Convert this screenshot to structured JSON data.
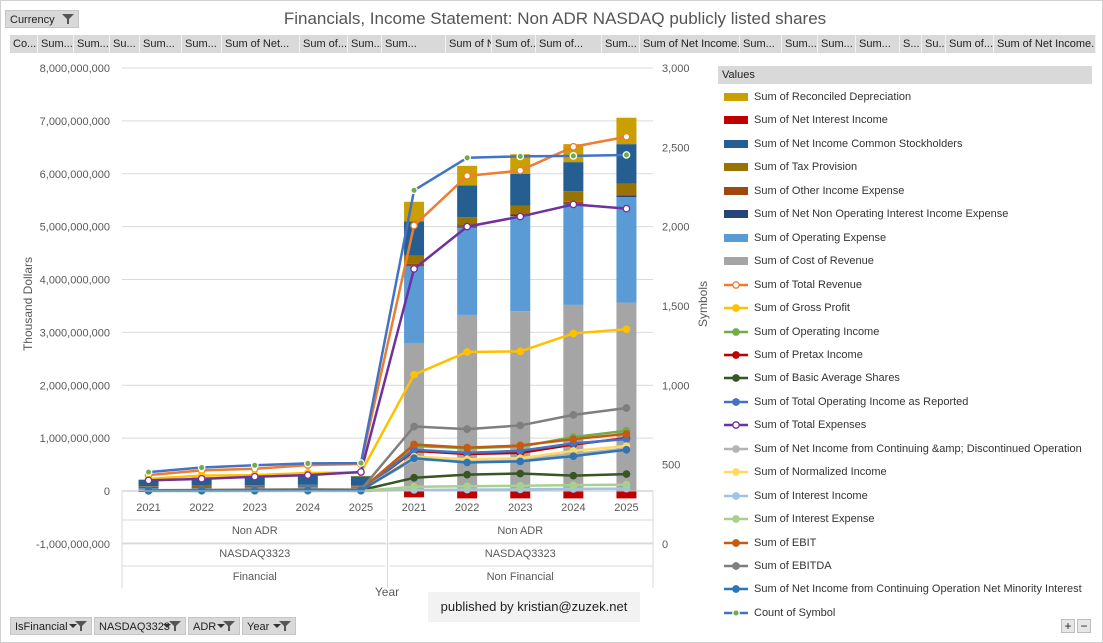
{
  "title": "Financials, Income Statement: Non ADR NASDAQ publicly listed shares",
  "filter_buttons": {
    "top": [
      {
        "label": "Currency"
      }
    ],
    "bottom": [
      {
        "label": "IsFinancial"
      },
      {
        "label": "NASDAQ3323"
      },
      {
        "label": "ADR"
      },
      {
        "label": "Year"
      }
    ]
  },
  "value_fields": [
    "Co...",
    "Sum...",
    "Sum...",
    "Su...",
    "Sum...",
    "Sum...",
    "Sum of Net...",
    "Sum of...",
    "Sum...",
    "Sum...",
    "Sum of Net...",
    "Sum of...",
    "Sum of...",
    "Sum...",
    "Sum of Net Income...",
    "Sum...",
    "Sum...",
    "Sum...",
    "Sum...",
    "S...",
    "Su...",
    "Sum of...",
    "Sum of Net Income..."
  ],
  "published": "published by kristian@zuzek.net",
  "zoom_plus": "+",
  "zoom_minus": "−",
  "chart_data": {
    "type": "bar",
    "x_title": "Year",
    "y_left_title": "Thousand Dollars",
    "y_right_title": "Symbols",
    "y_left_ticks": [
      "8,000,000,000",
      "7,000,000,000",
      "6,000,000,000",
      "5,000,000,000",
      "4,000,000,000",
      "3,000,000,000",
      "2,000,000,000",
      "1,000,000,000",
      "0",
      "-1,000,000,000"
    ],
    "y_right_ticks": [
      "3,000",
      "2,500",
      "2,000",
      "1,500",
      "1,000",
      "500",
      "0"
    ],
    "ylim_left": [
      -1000000000,
      8000000000
    ],
    "ylim_right": [
      0,
      3000
    ],
    "categories": [
      "2021",
      "2022",
      "2023",
      "2024",
      "2025",
      "2021",
      "2022",
      "2023",
      "2024",
      "2025"
    ],
    "groups_level2": [
      {
        "label": "Non ADR"
      },
      {
        "label": "Non ADR"
      }
    ],
    "groups_level3": [
      {
        "label": "NASDAQ3323"
      },
      {
        "label": "NASDAQ3323"
      }
    ],
    "groups_level4": [
      {
        "label": "Financial"
      },
      {
        "label": "Non Financial"
      }
    ],
    "legend_title": "Values",
    "stacked_series": [
      {
        "name": "Sum of Cost of Revenue",
        "color": "#a5a5a5",
        "values": [
          20000000,
          25000000,
          30000000,
          35000000,
          25000000,
          2800000000,
          3330000000,
          3400000000,
          3520000000,
          3560000000
        ]
      },
      {
        "name": "Sum of Operating Expense",
        "color": "#5b9bd5",
        "values": [
          40000000,
          45000000,
          48000000,
          52000000,
          50000000,
          1450000000,
          1650000000,
          1800000000,
          1900000000,
          2000000000
        ]
      },
      {
        "name": "Sum of Net Non Operating Interest Income Expense",
        "color": "#264478",
        "values": [
          5000000,
          5000000,
          5000000,
          5000000,
          5000000,
          20000000,
          20000000,
          20000000,
          20000000,
          20000000
        ]
      },
      {
        "name": "Sum of Other Income Expense",
        "color": "#9e480e",
        "values": [
          10000000,
          10000000,
          10000000,
          10000000,
          10000000,
          30000000,
          30000000,
          30000000,
          30000000,
          30000000
        ]
      },
      {
        "name": "Sum of Tax Provision",
        "color": "#997300",
        "values": [
          15000000,
          15000000,
          15000000,
          15000000,
          15000000,
          150000000,
          150000000,
          150000000,
          200000000,
          200000000
        ]
      },
      {
        "name": "Sum of Net Income Common Stockholders",
        "color": "#255e91",
        "values": [
          120000000,
          150000000,
          160000000,
          170000000,
          170000000,
          650000000,
          600000000,
          600000000,
          550000000,
          750000000
        ]
      },
      {
        "name": "Sum of Net Interest Income",
        "color": "#c00000",
        "values": [
          -20000000,
          -20000000,
          -20000000,
          -20000000,
          -20000000,
          -120000000,
          -140000000,
          -140000000,
          -140000000,
          -140000000
        ]
      },
      {
        "name": "Sum of Reconciled Depreciation",
        "color": "#c9a000",
        "values": [
          10000000,
          10000000,
          10000000,
          10000000,
          10000000,
          370000000,
          370000000,
          370000000,
          340000000,
          500000000
        ]
      }
    ],
    "line_series": [
      {
        "name": "Sum of Total Revenue",
        "color": "#ed7d31",
        "marker": "hollow",
        "axis": "left",
        "values": [
          300000000,
          390000000,
          420000000,
          490000000,
          510000000,
          5020000000,
          5960000000,
          6060000000,
          6510000000,
          6700000000
        ]
      },
      {
        "name": "Sum of Gross Profit",
        "color": "#ffc000",
        "marker": "solid",
        "axis": "left",
        "values": [
          230000000,
          290000000,
          300000000,
          340000000,
          350000000,
          2200000000,
          2630000000,
          2640000000,
          2980000000,
          3060000000
        ]
      },
      {
        "name": "Sum of Operating Income",
        "color": "#70ad47",
        "marker": "solid",
        "axis": "left",
        "values": [
          10000000,
          15000000,
          20000000,
          25000000,
          20000000,
          850000000,
          810000000,
          840000000,
          1020000000,
          1140000000
        ]
      },
      {
        "name": "Sum of Pretax Income",
        "color": "#c00000",
        "marker": "solid",
        "axis": "left",
        "values": [
          8000000,
          10000000,
          12000000,
          15000000,
          10000000,
          760000000,
          700000000,
          720000000,
          880000000,
          1000000000
        ]
      },
      {
        "name": "Sum of Basic Average Shares",
        "color": "#375623",
        "marker": "solid",
        "axis": "left",
        "values": [
          10000000,
          12000000,
          12000000,
          14000000,
          15000000,
          250000000,
          310000000,
          330000000,
          290000000,
          320000000
        ]
      },
      {
        "name": "Sum of Total Operating Income as Reported",
        "color": "#4472c4",
        "marker": "solid",
        "axis": "left",
        "values": [
          10000000,
          12000000,
          15000000,
          20000000,
          15000000,
          780000000,
          720000000,
          760000000,
          900000000,
          980000000
        ]
      },
      {
        "name": "Sum of Total Expenses",
        "color": "#7030a0",
        "marker": "hollow",
        "axis": "left",
        "values": [
          200000000,
          230000000,
          270000000,
          300000000,
          360000000,
          4200000000,
          5000000000,
          5190000000,
          5420000000,
          5340000000
        ]
      },
      {
        "name": "Sum of Net Income from Continuing &amp; Discontinued Operation",
        "color": "#b4b4b4",
        "marker": "solid",
        "axis": "left",
        "values": [
          5000000,
          8000000,
          10000000,
          12000000,
          10000000,
          600000000,
          560000000,
          600000000,
          700000000,
          800000000
        ]
      },
      {
        "name": "Sum of Normalized Income",
        "color": "#ffd966",
        "marker": "solid",
        "axis": "left",
        "values": [
          5000000,
          8000000,
          10000000,
          12000000,
          10000000,
          650000000,
          600000000,
          620000000,
          760000000,
          850000000
        ]
      },
      {
        "name": "Sum of Interest Income",
        "color": "#9dc3e6",
        "marker": "solid",
        "axis": "left",
        "values": [
          2000000,
          2000000,
          3000000,
          3000000,
          3000000,
          20000000,
          25000000,
          30000000,
          40000000,
          45000000
        ]
      },
      {
        "name": "Sum of Interest Expense",
        "color": "#a9d18e",
        "marker": "solid",
        "axis": "left",
        "values": [
          1000000,
          1000000,
          2000000,
          2000000,
          2000000,
          80000000,
          90000000,
          100000000,
          110000000,
          120000000
        ]
      },
      {
        "name": "Sum of EBIT",
        "color": "#c55a11",
        "marker": "solid",
        "axis": "left",
        "values": [
          10000000,
          15000000,
          20000000,
          25000000,
          20000000,
          880000000,
          820000000,
          860000000,
          980000000,
          1080000000
        ]
      },
      {
        "name": "Sum of EBITDA",
        "color": "#7f7f7f",
        "marker": "solid",
        "axis": "left",
        "values": [
          15000000,
          20000000,
          25000000,
          30000000,
          25000000,
          1220000000,
          1170000000,
          1240000000,
          1440000000,
          1570000000
        ]
      },
      {
        "name": "Sum of Net Income from Continuing Operation Net Minority Interest",
        "color": "#2e75b6",
        "marker": "solid",
        "axis": "left",
        "values": [
          5000000,
          8000000,
          10000000,
          12000000,
          10000000,
          620000000,
          540000000,
          560000000,
          660000000,
          780000000
        ]
      },
      {
        "name": "Count of Symbol",
        "color": "#4472c4",
        "marker": "green",
        "axis": "right",
        "values": [
          453,
          482,
          496,
          508,
          510,
          2229,
          2434,
          2443,
          2446,
          2452
        ]
      }
    ]
  }
}
